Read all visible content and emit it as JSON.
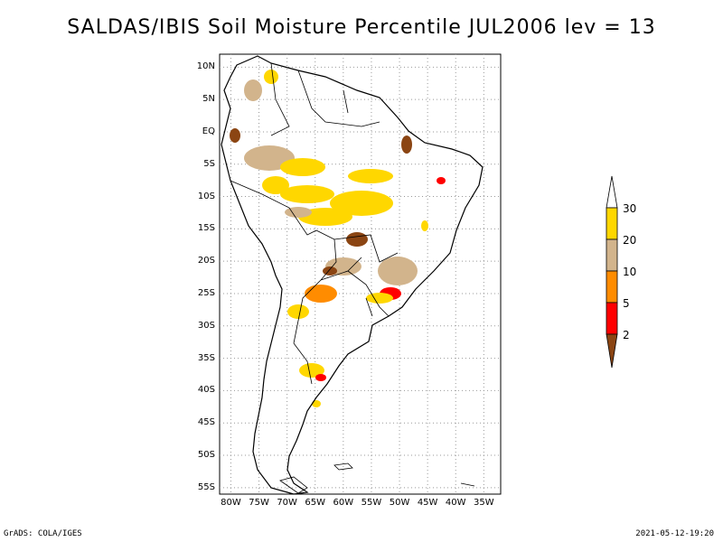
{
  "title": "SALDAS/IBIS Soil Moisture Percentile JUL2006 lev = 13",
  "footer": {
    "software": "GrADS: COLA/IGES",
    "timestamp": "2021-05-12-19:20"
  },
  "map": {
    "lat_range": [
      -56,
      12
    ],
    "lon_range": [
      -82,
      -32
    ],
    "lat_ticks": [
      "10N",
      "5N",
      "EQ",
      "5S",
      "10S",
      "15S",
      "20S",
      "25S",
      "30S",
      "35S",
      "40S",
      "45S",
      "50S",
      "55S"
    ],
    "lon_ticks": [
      "80W",
      "75W",
      "70W",
      "65W",
      "60W",
      "55W",
      "50W",
      "45W",
      "40W",
      "35W"
    ],
    "grid": true
  },
  "legend": {
    "labels": [
      "2",
      "5",
      "10",
      "20",
      "30"
    ],
    "colors": {
      "below_2": "#8b4513",
      "2_5": "#ff0000",
      "5_10": "#ff8c00",
      "10_20": "#d2b48c",
      "20_30": "#ffd700",
      "above_30": "#ffffff"
    }
  }
}
